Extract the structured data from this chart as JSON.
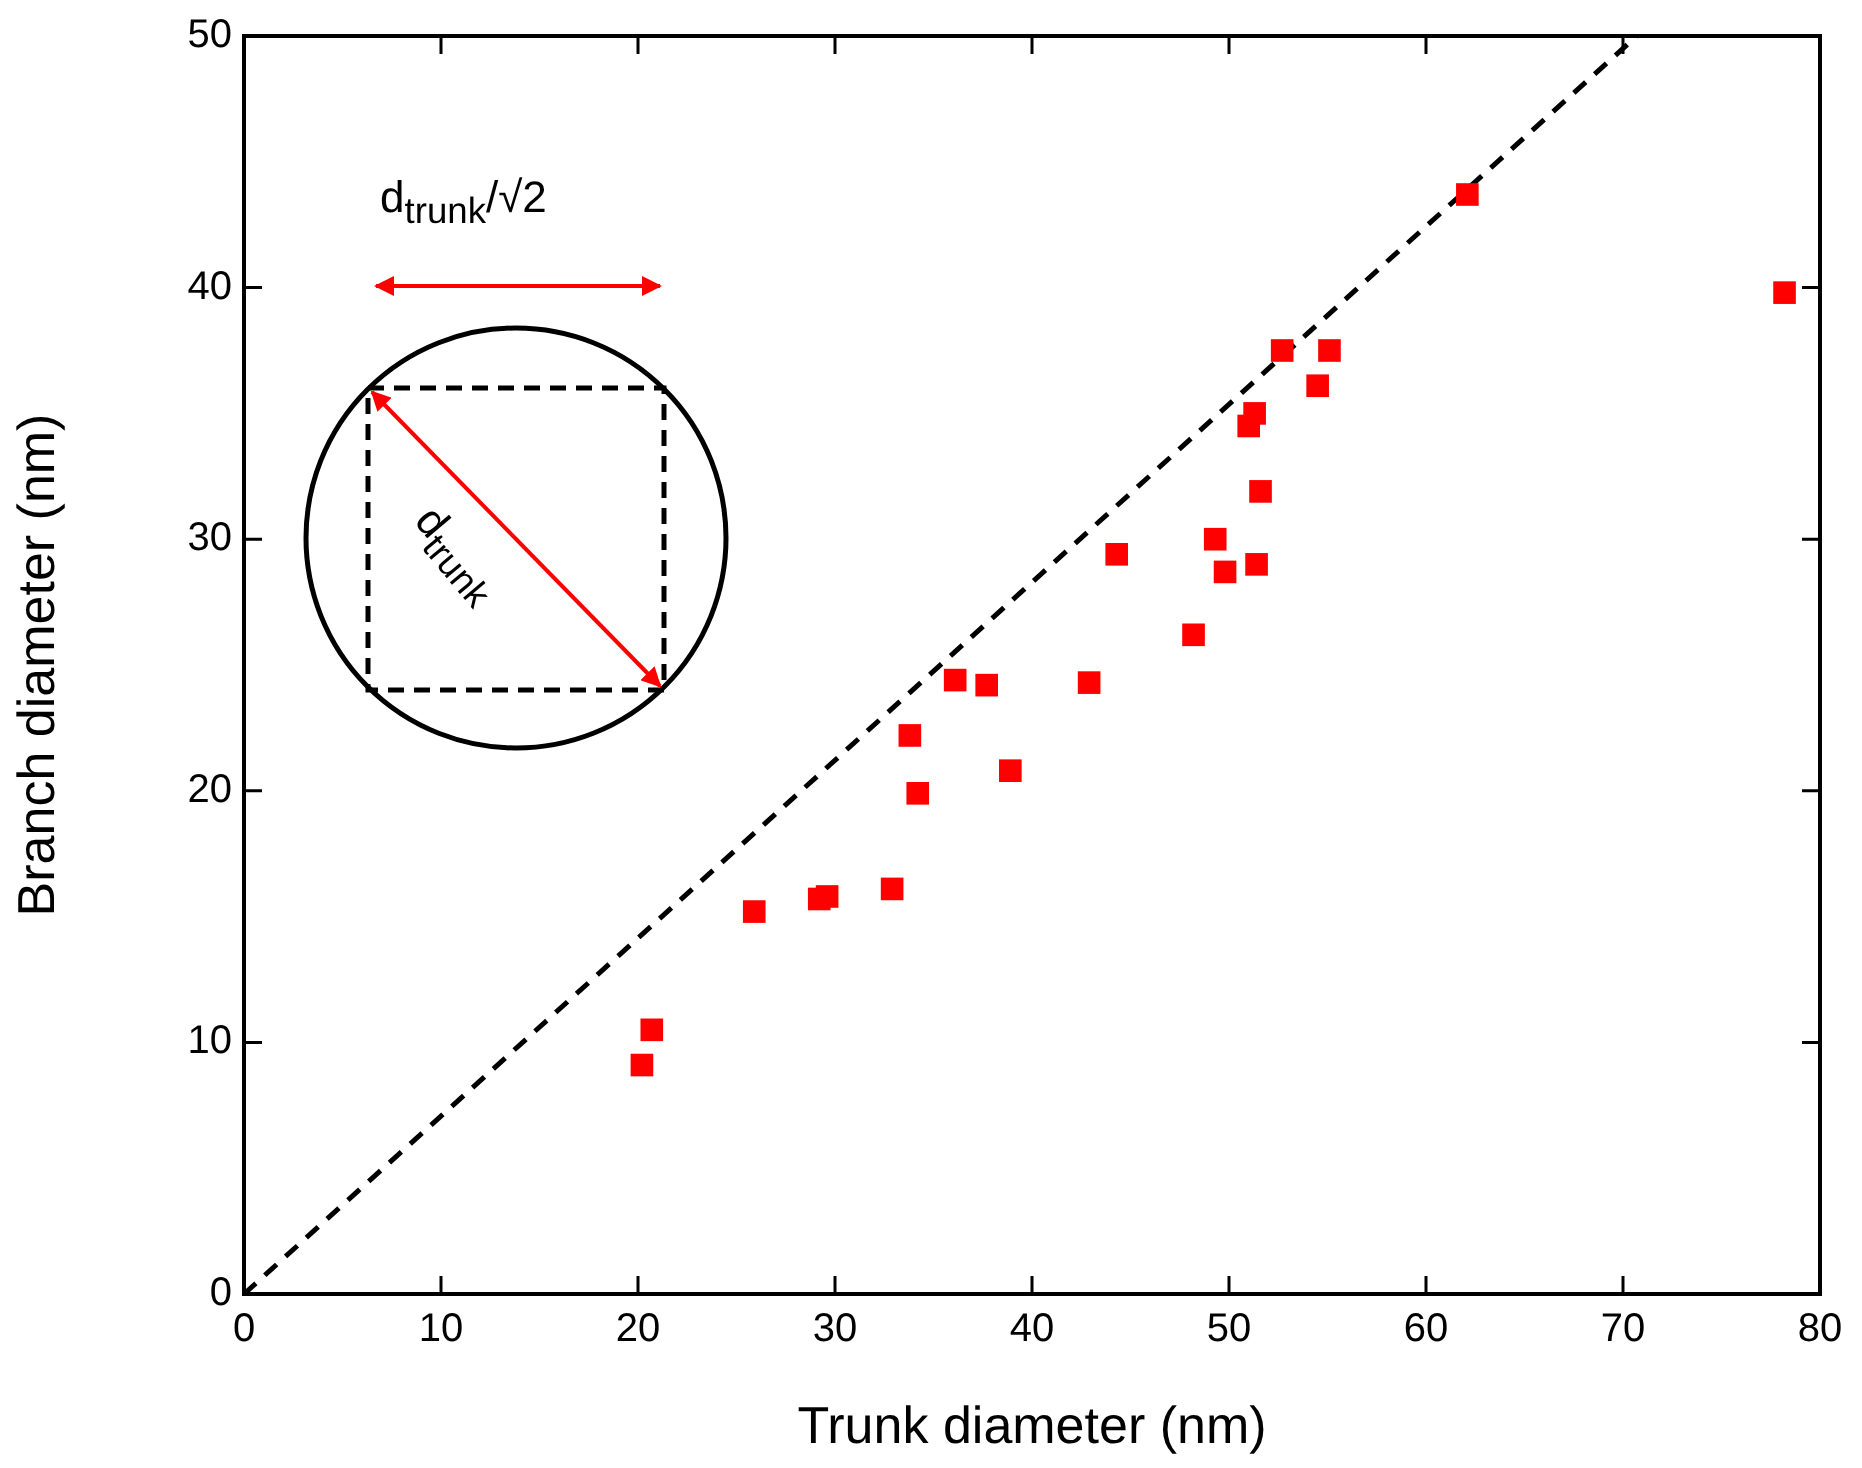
{
  "chart_data": {
    "type": "scatter",
    "xlabel": "Trunk diameter (nm)",
    "ylabel": "Branch diameter (nm)",
    "xlim": [
      0,
      80
    ],
    "xticks": [
      0,
      10,
      20,
      30,
      40,
      50,
      60,
      70,
      80
    ],
    "ylim": [
      0,
      50
    ],
    "yticks": [
      0,
      10,
      20,
      30,
      40,
      50
    ],
    "grid": false,
    "legend": false,
    "marker": "square",
    "annotations": [
      "d$_{trunk}$/√2",
      "d$_{trunk}$"
    ],
    "series": [
      {
        "color": "#ff0000",
        "x": [
          20.2,
          20.7,
          25.9,
          29.2,
          29.6,
          32.9,
          33.8,
          34.2,
          36.1,
          37.7,
          38.9,
          42.9,
          44.3,
          48.2,
          49.3,
          49.8,
          51.0,
          51.3,
          51.4,
          51.6,
          52.7,
          54.5,
          55.1,
          62.1,
          78.2
        ],
        "values": [
          9.1,
          10.5,
          15.2,
          15.7,
          15.8,
          16.1,
          22.2,
          19.9,
          24.4,
          24.2,
          20.8,
          24.3,
          29.4,
          26.2,
          30.0,
          28.7,
          34.5,
          35.0,
          29.0,
          31.9,
          37.5,
          36.1,
          37.5,
          43.7,
          39.8
        ]
      },
      {
        "type": "line",
        "color": "#000000",
        "marker": "none",
        "line_style": "dashed",
        "x": [
          0,
          70.7
        ],
        "values": [
          0,
          50
        ]
      }
    ]
  }
}
